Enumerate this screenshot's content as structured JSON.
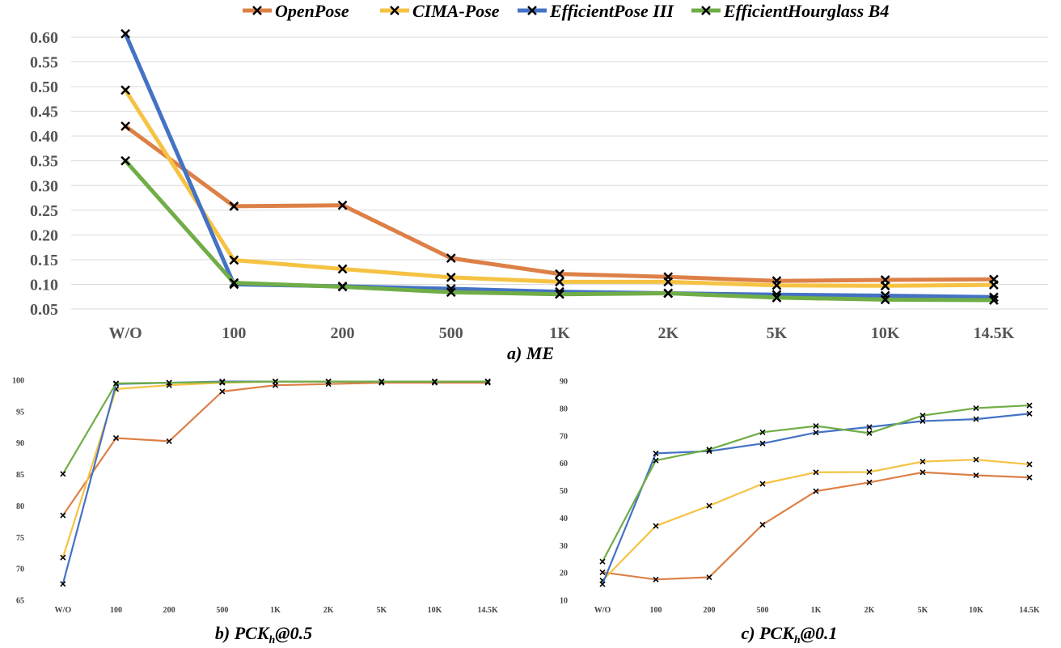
{
  "legend": [
    {
      "name": "OpenPose",
      "color": "#dd8047"
    },
    {
      "name": "CIMA-Pose",
      "color": "#f6c243"
    },
    {
      "name": "EfficientPose III",
      "color": "#4472c4"
    },
    {
      "name": "EfficientHourglass B4",
      "color": "#70ad47"
    }
  ],
  "captions": {
    "a": {
      "text": "a) ME"
    },
    "b": {
      "pre": "b) PCK",
      "sub": "h",
      "post": "@0.5"
    },
    "c": {
      "pre": "c) PCK",
      "sub": "h",
      "post": "@0.1"
    }
  },
  "chart_data": [
    {
      "id": "a",
      "type": "line",
      "title": "a) ME",
      "categories": [
        "W/O",
        "100",
        "200",
        "500",
        "1K",
        "2K",
        "5K",
        "10K",
        "14.5K"
      ],
      "ylim": [
        0.05,
        0.6
      ],
      "yticks": [
        0.05,
        0.1,
        0.15,
        0.2,
        0.25,
        0.3,
        0.35,
        0.4,
        0.45,
        0.5,
        0.55,
        0.6
      ],
      "ytick_labels": [
        "0.05",
        "0.10",
        "0.15",
        "0.20",
        "0.25",
        "0.30",
        "0.35",
        "0.40",
        "0.45",
        "0.50",
        "0.55",
        "0.60"
      ],
      "grid": true,
      "series": [
        {
          "name": "OpenPose",
          "color": "#dd8047",
          "values": [
            0.42,
            0.258,
            0.26,
            0.153,
            0.121,
            0.115,
            0.107,
            0.109,
            0.11
          ]
        },
        {
          "name": "CIMA-Pose",
          "color": "#f6c243",
          "values": [
            0.493,
            0.149,
            0.131,
            0.114,
            0.105,
            0.105,
            0.098,
            0.097,
            0.099
          ]
        },
        {
          "name": "EfficientPose III",
          "color": "#4472c4",
          "values": [
            0.607,
            0.1,
            0.096,
            0.091,
            0.085,
            0.082,
            0.079,
            0.077,
            0.074
          ]
        },
        {
          "name": "EfficientHourglass B4",
          "color": "#70ad47",
          "values": [
            0.35,
            0.103,
            0.095,
            0.084,
            0.08,
            0.082,
            0.073,
            0.069,
            0.068
          ]
        }
      ]
    },
    {
      "id": "b",
      "type": "line",
      "title": "b) PCKh@0.5",
      "categories": [
        "W/O",
        "100",
        "200",
        "500",
        "1K",
        "2K",
        "5K",
        "10K",
        "14.5K"
      ],
      "ylim": [
        65,
        100
      ],
      "yticks": [
        65,
        70,
        75,
        80,
        85,
        90,
        95,
        100
      ],
      "ytick_labels": [
        "65",
        "70",
        "75",
        "80",
        "85",
        "90",
        "95",
        "100"
      ],
      "grid": false,
      "series": [
        {
          "name": "OpenPose",
          "color": "#dd8047",
          "values": [
            78.5,
            90.8,
            90.3,
            98.2,
            99.2,
            99.4,
            99.6,
            99.6,
            99.6
          ]
        },
        {
          "name": "CIMA-Pose",
          "color": "#f6c243",
          "values": [
            71.8,
            98.6,
            99.2,
            99.6,
            99.8,
            99.8,
            99.8,
            99.8,
            99.8
          ]
        },
        {
          "name": "EfficientPose III",
          "color": "#4472c4",
          "values": [
            67.6,
            99.4,
            99.6,
            99.8,
            99.8,
            99.8,
            99.8,
            99.8,
            99.8
          ]
        },
        {
          "name": "EfficientHourglass B4",
          "color": "#70ad47",
          "values": [
            85.1,
            99.5,
            99.6,
            99.7,
            99.8,
            99.8,
            99.8,
            99.8,
            99.8
          ]
        }
      ]
    },
    {
      "id": "c",
      "type": "line",
      "title": "c) PCKh@0.1",
      "categories": [
        "W/O",
        "100",
        "200",
        "500",
        "1K",
        "2K",
        "5K",
        "10K",
        "14.5K"
      ],
      "ylim": [
        10,
        90
      ],
      "yticks": [
        10,
        20,
        30,
        40,
        50,
        60,
        70,
        80,
        90
      ],
      "ytick_labels": [
        "10",
        "20",
        "30",
        "40",
        "50",
        "60",
        "70",
        "80",
        "90"
      ],
      "grid": false,
      "series": [
        {
          "name": "OpenPose",
          "color": "#dd8047",
          "values": [
            20.2,
            17.6,
            18.4,
            37.6,
            49.8,
            53.0,
            56.7,
            55.6,
            54.8
          ]
        },
        {
          "name": "CIMA-Pose",
          "color": "#f6c243",
          "values": [
            17.2,
            37.1,
            44.5,
            52.5,
            56.7,
            56.8,
            60.6,
            61.3,
            59.6
          ]
        },
        {
          "name": "EfficientPose III",
          "color": "#4472c4",
          "values": [
            15.9,
            63.6,
            64.4,
            67.2,
            71.2,
            73.2,
            75.4,
            76.1,
            78.1
          ]
        },
        {
          "name": "EfficientHourglass B4",
          "color": "#70ad47",
          "values": [
            24.1,
            61.0,
            65.0,
            71.3,
            73.6,
            71.0,
            77.4,
            80.1,
            81.1
          ]
        }
      ]
    }
  ]
}
